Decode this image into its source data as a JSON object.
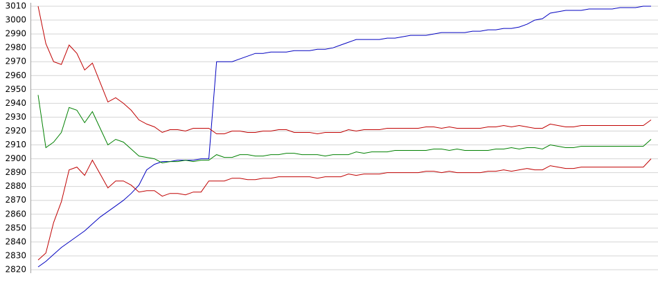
{
  "chart_data": {
    "type": "line",
    "ylim": [
      2820,
      3010
    ],
    "yticks": [
      2820,
      2830,
      2840,
      2850,
      2860,
      2870,
      2880,
      2890,
      2900,
      2910,
      2920,
      2930,
      2940,
      2950,
      2960,
      2970,
      2980,
      2990,
      3000,
      3010
    ],
    "grid": true,
    "series": [
      {
        "color": "#0000c0",
        "values": [
          2822,
          2826,
          2831,
          2836,
          2840,
          2844,
          2848,
          2853,
          2858,
          2862,
          2866,
          2870,
          2875,
          2881,
          2892,
          2896,
          2898,
          2898,
          2899,
          2899,
          2899,
          2900,
          2900,
          2970,
          2970,
          2970,
          2972,
          2974,
          2976,
          2976,
          2977,
          2977,
          2977,
          2978,
          2978,
          2978,
          2979,
          2979,
          2980,
          2982,
          2984,
          2986,
          2986,
          2986,
          2986,
          2987,
          2987,
          2988,
          2989,
          2989,
          2989,
          2990,
          2991,
          2991,
          2991,
          2991,
          2992,
          2992,
          2993,
          2993,
          2994,
          2994,
          2995,
          2997,
          3000,
          3001,
          3005,
          3006,
          3007,
          3007,
          3007,
          3008,
          3008,
          3008,
          3008,
          3009,
          3009,
          3009,
          3010,
          3010
        ]
      },
      {
        "color": "#c00000",
        "values": [
          3010,
          2983,
          2970,
          2968,
          2982,
          2976,
          2964,
          2969,
          2955,
          2941,
          2944,
          2940,
          2935,
          2928,
          2925,
          2923,
          2919,
          2921,
          2921,
          2920,
          2922,
          2922,
          2922,
          2918,
          2918,
          2920,
          2920,
          2919,
          2919,
          2920,
          2920,
          2921,
          2921,
          2919,
          2919,
          2919,
          2918,
          2919,
          2919,
          2919,
          2921,
          2920,
          2921,
          2921,
          2921,
          2922,
          2922,
          2922,
          2922,
          2922,
          2923,
          2923,
          2922,
          2923,
          2922,
          2922,
          2922,
          2922,
          2923,
          2923,
          2924,
          2923,
          2924,
          2923,
          2922,
          2922,
          2925,
          2924,
          2923,
          2923,
          2924,
          2924,
          2924,
          2924,
          2924,
          2924,
          2924,
          2924,
          2924,
          2928
        ]
      },
      {
        "color": "#008000",
        "values": [
          2946,
          2908,
          2912,
          2919,
          2937,
          2935,
          2926,
          2934,
          2922,
          2910,
          2914,
          2912,
          2907,
          2902,
          2901,
          2900,
          2897,
          2898,
          2898,
          2899,
          2898,
          2899,
          2899,
          2903,
          2901,
          2901,
          2903,
          2903,
          2902,
          2902,
          2903,
          2903,
          2904,
          2904,
          2903,
          2903,
          2903,
          2902,
          2903,
          2903,
          2903,
          2905,
          2904,
          2905,
          2905,
          2905,
          2906,
          2906,
          2906,
          2906,
          2906,
          2907,
          2907,
          2906,
          2907,
          2906,
          2906,
          2906,
          2906,
          2907,
          2907,
          2908,
          2907,
          2908,
          2908,
          2907,
          2910,
          2909,
          2908,
          2908,
          2909,
          2909,
          2909,
          2909,
          2909,
          2909,
          2909,
          2909,
          2909,
          2914
        ]
      },
      {
        "color": "#c00000",
        "values": [
          2827,
          2832,
          2854,
          2869,
          2892,
          2894,
          2888,
          2899,
          2889,
          2879,
          2884,
          2884,
          2881,
          2876,
          2877,
          2877,
          2873,
          2875,
          2875,
          2874,
          2876,
          2876,
          2884,
          2884,
          2884,
          2886,
          2886,
          2885,
          2885,
          2886,
          2886,
          2887,
          2887,
          2887,
          2887,
          2887,
          2886,
          2887,
          2887,
          2887,
          2889,
          2888,
          2889,
          2889,
          2889,
          2890,
          2890,
          2890,
          2890,
          2890,
          2891,
          2891,
          2890,
          2891,
          2890,
          2890,
          2890,
          2890,
          2891,
          2891,
          2892,
          2891,
          2892,
          2893,
          2892,
          2892,
          2895,
          2894,
          2893,
          2893,
          2894,
          2894,
          2894,
          2894,
          2894,
          2894,
          2894,
          2894,
          2894,
          2900
        ]
      }
    ]
  }
}
